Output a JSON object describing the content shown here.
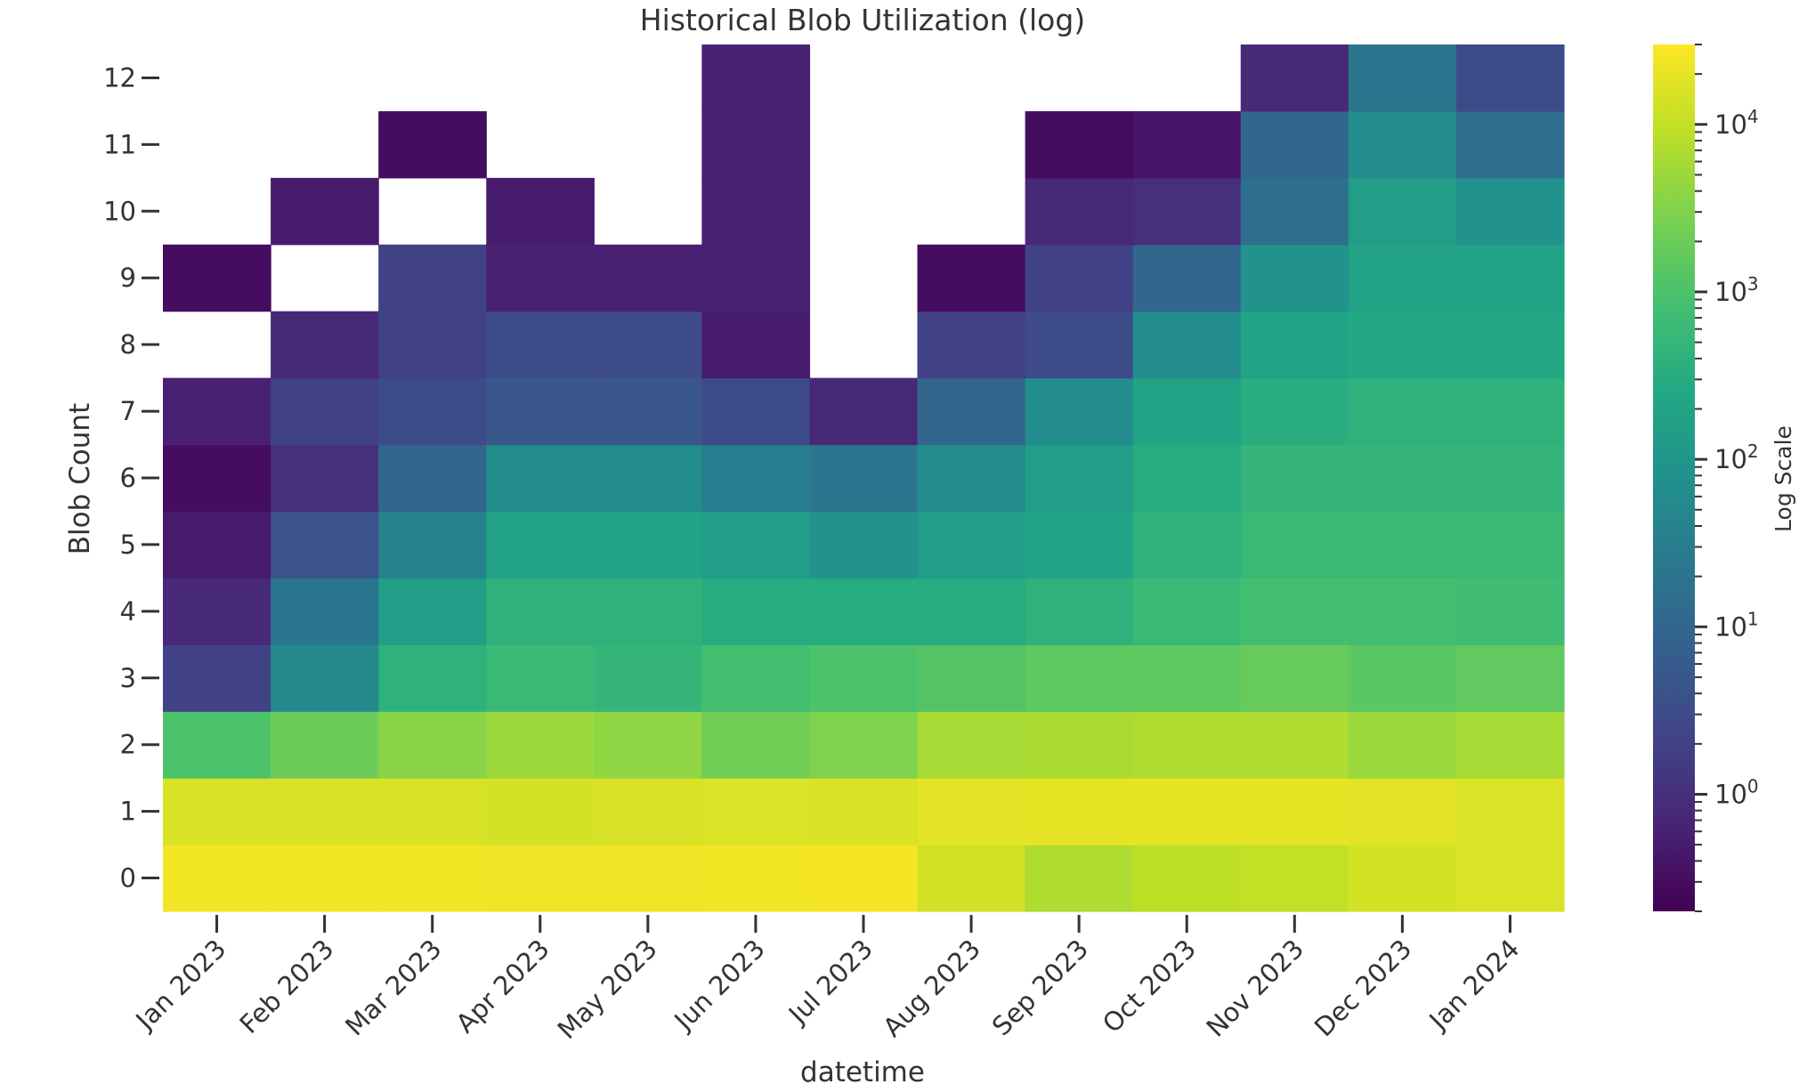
{
  "chart_data": {
    "type": "heatmap",
    "title": "Historical Blob Utilization (log)",
    "xlabel": "datetime",
    "ylabel": "Blob Count",
    "x_categories": [
      "Jan 2023",
      "Feb 2023",
      "Mar 2023",
      "Apr 2023",
      "May 2023",
      "Jun 2023",
      "Jul 2023",
      "Aug 2023",
      "Sep 2023",
      "Oct 2023",
      "Nov 2023",
      "Dec 2023",
      "Jan 2024"
    ],
    "y_categories": [
      "0",
      "1",
      "2",
      "3",
      "4",
      "5",
      "6",
      "7",
      "8",
      "9",
      "10",
      "11",
      "12"
    ],
    "colorbar": {
      "label": "Log Scale",
      "scale": "log",
      "range": [
        0.2,
        30000
      ],
      "ticks": [
        {
          "value": 1,
          "base": "10",
          "exp": "0"
        },
        {
          "value": 10,
          "base": "10",
          "exp": "1"
        },
        {
          "value": 100,
          "base": "10",
          "exp": "2"
        },
        {
          "value": 1000,
          "base": "10",
          "exp": "3"
        },
        {
          "value": 10000,
          "base": "10",
          "exp": "4"
        }
      ]
    },
    "grid": false,
    "values_note": "rows ordered by blob count 0..12; columns by month; null = no data (blank cell); values estimated from colour",
    "values": [
      [
        25000,
        25000,
        25000,
        23000,
        23000,
        25000,
        26000,
        13000,
        7000,
        9000,
        10000,
        14000,
        16000
      ],
      [
        15000,
        15000,
        15000,
        14000,
        15000,
        16000,
        15000,
        18000,
        20000,
        20000,
        20000,
        18000,
        16000
      ],
      [
        1000,
        2000,
        3500,
        5000,
        4000,
        2200,
        3000,
        6000,
        6500,
        7000,
        7000,
        5000,
        6000
      ],
      [
        2,
        50,
        400,
        600,
        500,
        800,
        1000,
        1200,
        1500,
        1500,
        1800,
        1400,
        1600
      ],
      [
        0.8,
        20,
        150,
        400,
        400,
        300,
        300,
        300,
        400,
        600,
        800,
        800,
        700
      ],
      [
        0.5,
        4,
        40,
        200,
        200,
        150,
        80,
        150,
        200,
        400,
        600,
        600,
        600
      ],
      [
        0.3,
        1,
        10,
        60,
        60,
        30,
        20,
        60,
        150,
        300,
        500,
        500,
        500
      ],
      [
        0.6,
        2,
        3,
        5,
        5,
        3,
        0.8,
        10,
        60,
        200,
        350,
        400,
        400
      ],
      [
        null,
        0.8,
        2,
        3,
        3,
        0.5,
        null,
        2,
        3,
        60,
        200,
        250,
        250
      ],
      [
        0.3,
        null,
        2,
        0.6,
        0.6,
        0.6,
        null,
        0.3,
        2,
        10,
        80,
        200,
        200
      ],
      [
        null,
        0.5,
        null,
        0.5,
        null,
        0.6,
        null,
        null,
        0.8,
        1,
        15,
        150,
        80
      ],
      [
        null,
        null,
        0.3,
        null,
        null,
        0.6,
        null,
        null,
        0.3,
        0.4,
        10,
        60,
        15
      ],
      [
        null,
        null,
        null,
        null,
        null,
        0.6,
        null,
        null,
        null,
        null,
        0.8,
        20,
        3
      ]
    ]
  }
}
